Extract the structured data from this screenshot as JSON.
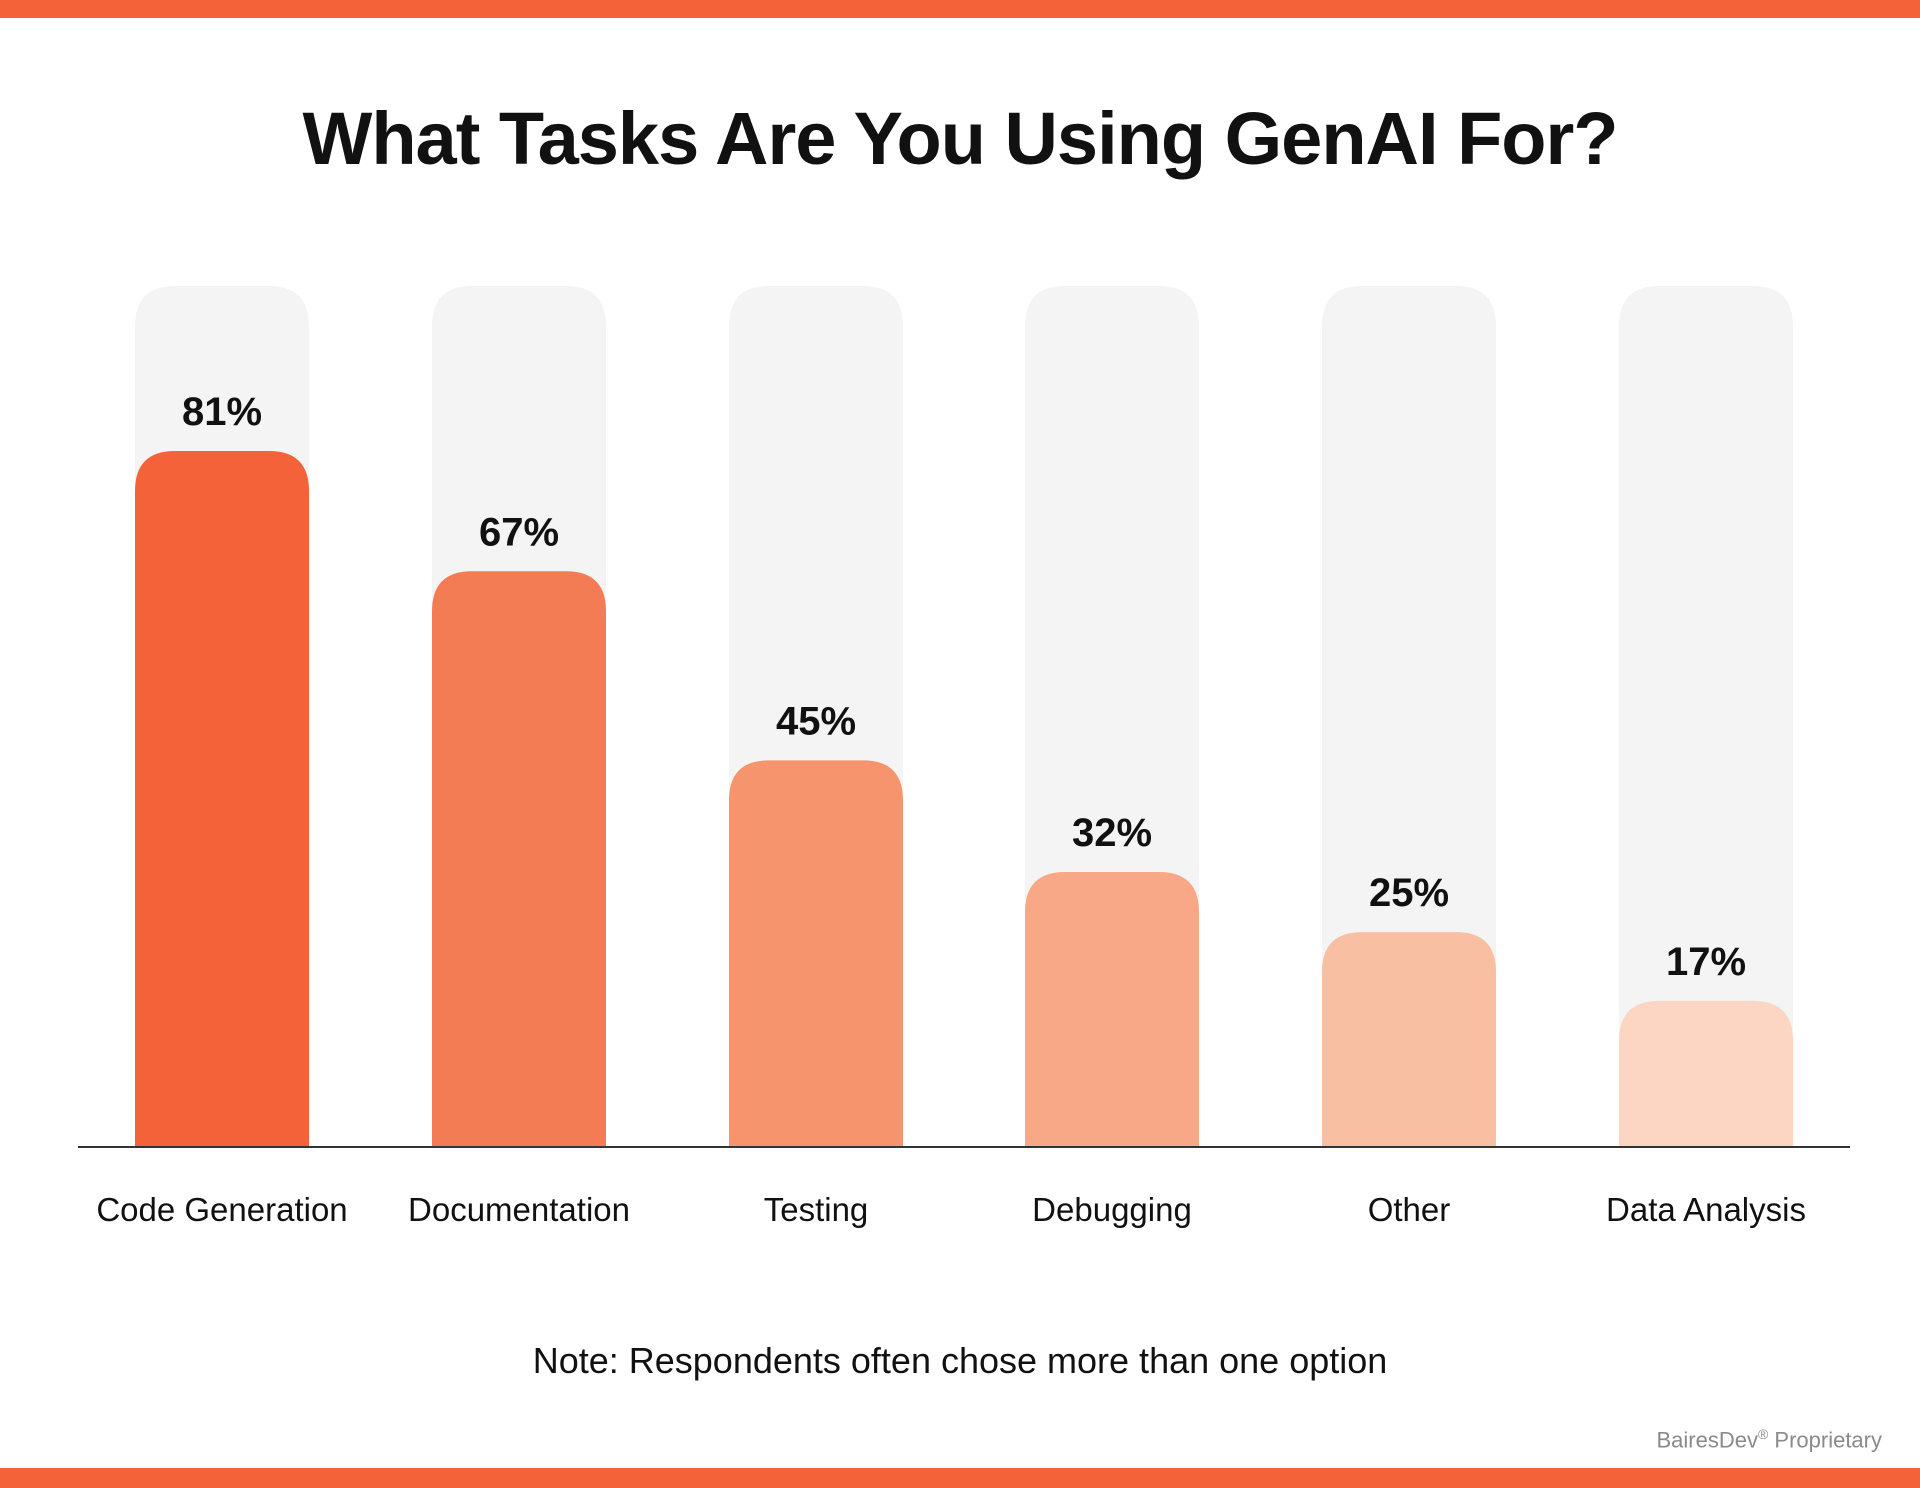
{
  "colors": {
    "stripe": "#f4623a",
    "track": "#f3f4f3",
    "axis": "#333333"
  },
  "chart_data": {
    "type": "bar",
    "title": "What Tasks Are You Using GenAI For?",
    "categories": [
      "Code Generation",
      "Documentation",
      "Testing",
      "Debugging",
      "Other",
      "Data Analysis"
    ],
    "values": [
      81,
      67,
      45,
      32,
      25,
      17
    ],
    "value_labels": [
      "81%",
      "67%",
      "45%",
      "32%",
      "25%",
      "17%"
    ],
    "bar_colors": [
      "#f4623a",
      "#f47c54",
      "#f6946e",
      "#f8a886",
      "#f9bfa3",
      "#fcd6c3"
    ],
    "ylim": [
      0,
      100
    ],
    "grid": false,
    "legend": "none",
    "note": "Note: Respondents often chose more than one option"
  },
  "footer": {
    "brand": "BairesDev",
    "mark": "®",
    "suffix": " Proprietary"
  }
}
